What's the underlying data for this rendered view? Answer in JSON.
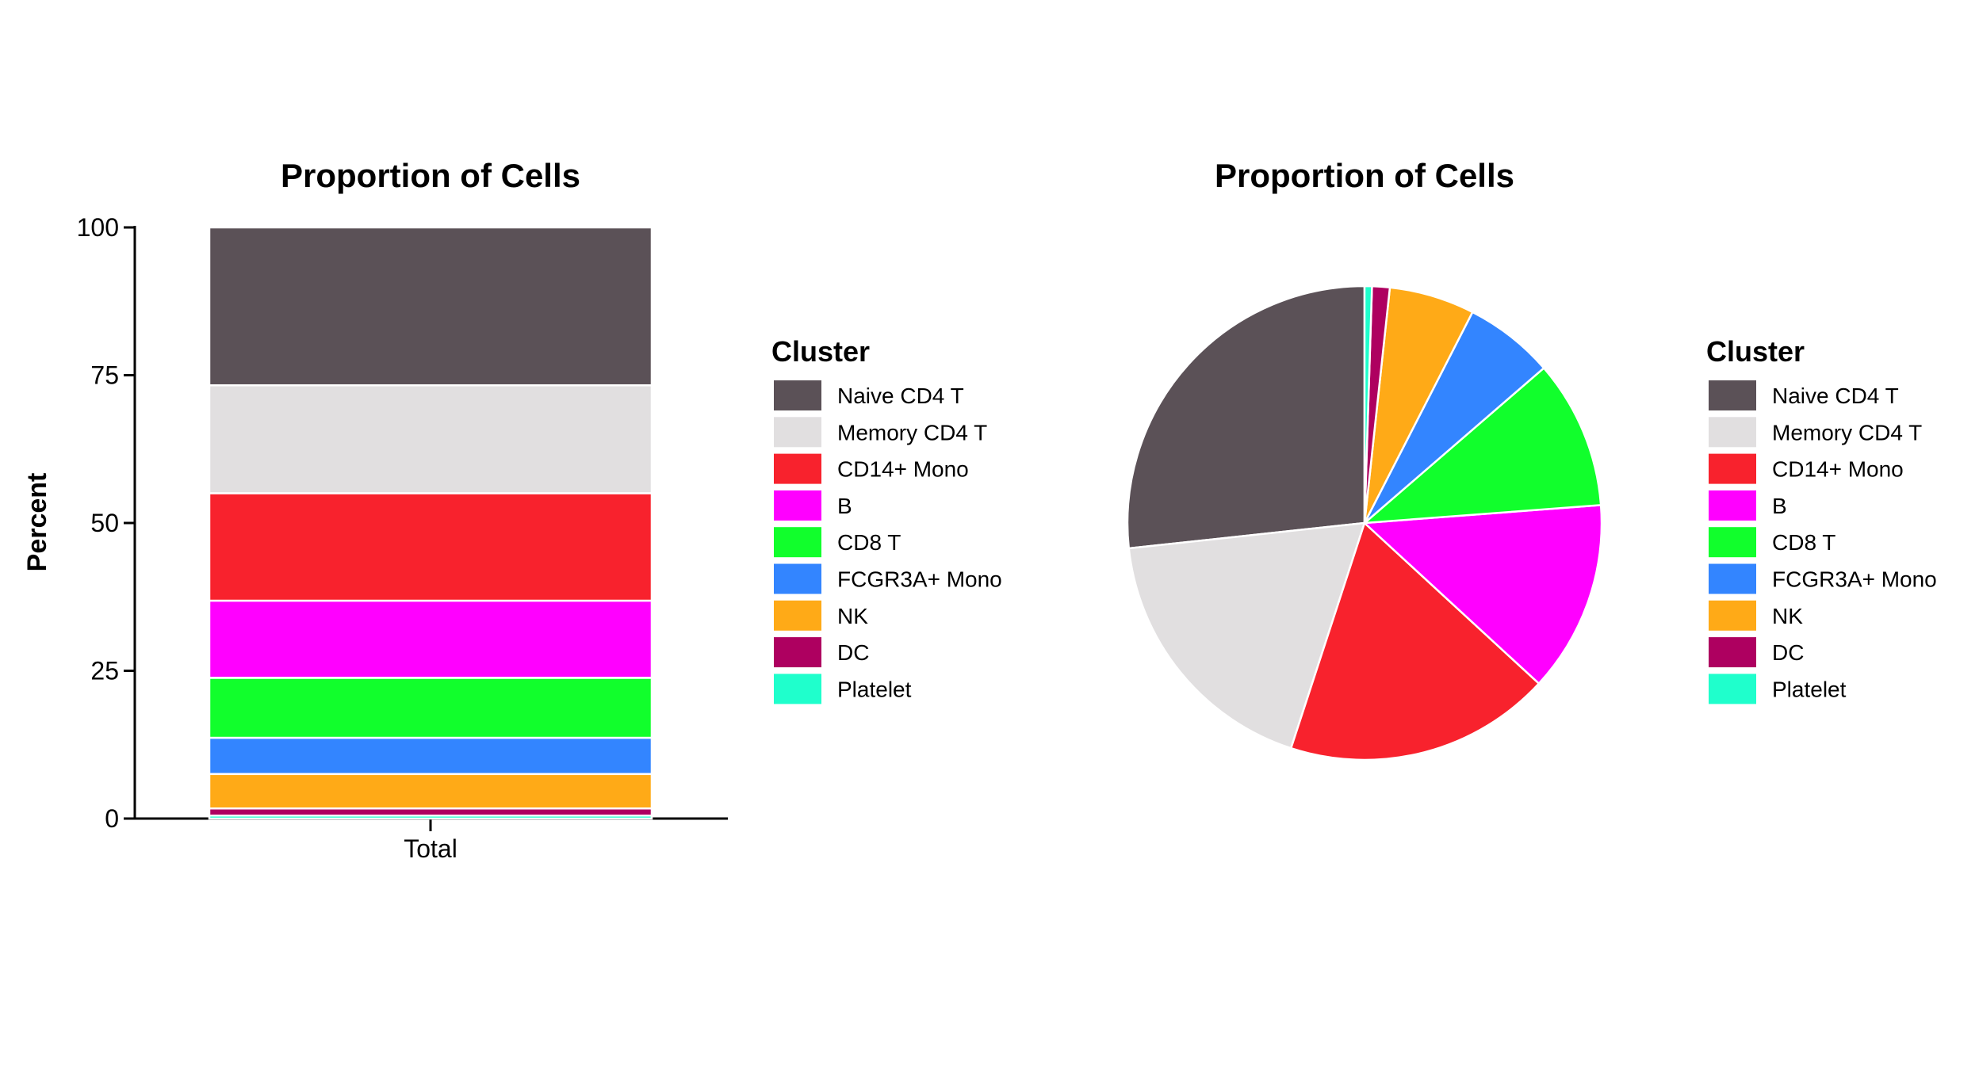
{
  "chart_data": [
    {
      "type": "bar",
      "stacked": true,
      "title": "Proportion of Cells",
      "xlabel": "",
      "ylabel": "Percent",
      "categories": [
        "Total"
      ],
      "ylim": [
        0,
        100
      ],
      "yticks": [
        "0",
        "25",
        "50",
        "75",
        "100"
      ],
      "series": [
        {
          "name": "Naive CD4 T",
          "values": [
            26.6
          ],
          "color": "#5B5157"
        },
        {
          "name": "Memory CD4 T",
          "values": [
            18.2
          ],
          "color": "#E1DFE0"
        },
        {
          "name": "CD14+ Mono",
          "values": [
            18.1
          ],
          "color": "#F8222D"
        },
        {
          "name": "B",
          "values": [
            13.0
          ],
          "color": "#FF00FF"
        },
        {
          "name": "CD8 T",
          "values": [
            10.1
          ],
          "color": "#11FF2C"
        },
        {
          "name": "FCGR3A+ Mono",
          "values": [
            6.1
          ],
          "color": "#3385FF"
        },
        {
          "name": "NK",
          "values": [
            5.8
          ],
          "color": "#FFAA17"
        },
        {
          "name": "DC",
          "values": [
            1.2
          ],
          "color": "#AE0060"
        },
        {
          "name": "Platelet",
          "values": [
            0.5
          ],
          "color": "#1FFFCC"
        }
      ],
      "legend": {
        "title": "Cluster",
        "position": "right"
      },
      "grid": false
    },
    {
      "type": "pie",
      "title": "Proportion of Cells",
      "slices": [
        {
          "name": "Naive CD4 T",
          "value": 26.6,
          "color": "#5B5157"
        },
        {
          "name": "Memory CD4 T",
          "value": 18.2,
          "color": "#E1DFE0"
        },
        {
          "name": "CD14+ Mono",
          "value": 18.1,
          "color": "#F8222D"
        },
        {
          "name": "B",
          "value": 13.0,
          "color": "#FF00FF"
        },
        {
          "name": "CD8 T",
          "value": 10.1,
          "color": "#11FF2C"
        },
        {
          "name": "FCGR3A+ Mono",
          "value": 6.1,
          "color": "#3385FF"
        },
        {
          "name": "NK",
          "value": 5.8,
          "color": "#FFAA17"
        },
        {
          "name": "DC",
          "value": 1.2,
          "color": "#AE0060"
        },
        {
          "name": "Platelet",
          "value": 0.5,
          "color": "#1FFFCC"
        }
      ],
      "legend": {
        "title": "Cluster",
        "position": "right"
      }
    }
  ]
}
